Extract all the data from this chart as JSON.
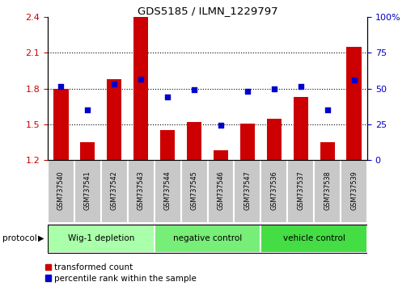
{
  "title": "GDS5185 / ILMN_1229797",
  "samples": [
    "GSM737540",
    "GSM737541",
    "GSM737542",
    "GSM737543",
    "GSM737544",
    "GSM737545",
    "GSM737546",
    "GSM737547",
    "GSM737536",
    "GSM737537",
    "GSM737538",
    "GSM737539"
  ],
  "bar_values": [
    1.8,
    1.35,
    1.88,
    2.4,
    1.45,
    1.52,
    1.28,
    1.51,
    1.55,
    1.73,
    1.35,
    2.15
  ],
  "dot_values": [
    1.82,
    1.62,
    1.84,
    1.88,
    1.73,
    1.79,
    1.49,
    1.78,
    1.8,
    1.82,
    1.62,
    1.87
  ],
  "ylim_left": [
    1.2,
    2.4
  ],
  "ylim_right": [
    0,
    100
  ],
  "yticks_left": [
    1.2,
    1.5,
    1.8,
    2.1,
    2.4
  ],
  "yticks_right": [
    0,
    25,
    50,
    75,
    100
  ],
  "ytick_labels_left": [
    "1.2",
    "1.5",
    "1.8",
    "2.1",
    "2.4"
  ],
  "ytick_labels_right": [
    "0",
    "25",
    "50",
    "75",
    "100%"
  ],
  "hlines": [
    1.5,
    1.8,
    2.1
  ],
  "bar_color": "#cc0000",
  "dot_color": "#0000cc",
  "groups": [
    {
      "label": "Wig-1 depletion",
      "start": 0,
      "end": 3,
      "color": "#aaffaa"
    },
    {
      "label": "negative control",
      "start": 4,
      "end": 7,
      "color": "#77ee77"
    },
    {
      "label": "vehicle control",
      "start": 8,
      "end": 11,
      "color": "#44dd44"
    }
  ],
  "bar_width": 0.55,
  "legend_red_label": "transformed count",
  "legend_blue_label": "percentile rank within the sample",
  "protocol_label": "protocol",
  "color_left": "#cc0000",
  "color_right": "#0000cc",
  "cell_color": "#cccccc",
  "cell_edge": "#888888",
  "fig_bg": "#ffffff"
}
